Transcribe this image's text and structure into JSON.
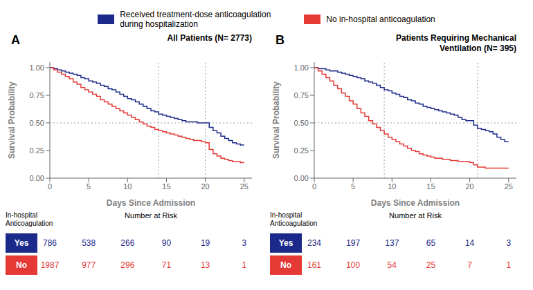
{
  "chart_data": [
    {
      "type": "line",
      "line_style": "step",
      "title": "All Patients (N= 2773)",
      "annotations": [
        "A"
      ],
      "legend": "top",
      "grid": false,
      "x_label": "Days Since Admission",
      "y_label": "Survival Probability",
      "xlim": [
        0,
        26
      ],
      "xticks": [
        0,
        5,
        10,
        15,
        20,
        25
      ],
      "ylim": [
        0,
        1.05
      ],
      "yticks": [
        {
          "value": 0,
          "label": "0.00"
        },
        {
          "value": 0.25,
          "label": "0.25"
        },
        {
          "value": 0.5,
          "label": "0.50"
        },
        {
          "value": 0.75,
          "label": "0.75"
        },
        {
          "value": 1,
          "label": "1.00"
        }
      ],
      "reference_lines": {
        "y": [
          0.5
        ],
        "x": [
          14,
          20
        ]
      },
      "x": [
        0,
        0.5,
        1,
        1.5,
        2,
        2.5,
        3,
        3.5,
        4,
        4.5,
        5,
        5.5,
        6,
        6.5,
        7,
        7.5,
        8,
        8.5,
        9,
        9.5,
        10,
        10.5,
        11,
        11.5,
        12,
        12.5,
        13,
        13.5,
        14,
        14.5,
        15,
        15.5,
        16,
        16.5,
        17,
        17.5,
        18,
        18.5,
        19,
        19.5,
        20,
        20.5,
        21,
        21.5,
        22,
        22.5,
        23,
        23.5,
        24,
        24.5,
        25
      ],
      "series": [
        {
          "name": "Received treatment-dose anticoagulation\nduring hospitalization",
          "color": "#1b2a8a",
          "values": [
            1.0,
            0.99,
            0.98,
            0.97,
            0.96,
            0.95,
            0.94,
            0.93,
            0.91,
            0.9,
            0.88,
            0.87,
            0.86,
            0.84,
            0.83,
            0.81,
            0.8,
            0.78,
            0.76,
            0.74,
            0.72,
            0.71,
            0.69,
            0.67,
            0.65,
            0.63,
            0.61,
            0.6,
            0.58,
            0.57,
            0.56,
            0.55,
            0.54,
            0.53,
            0.52,
            0.51,
            0.51,
            0.51,
            0.5,
            0.5,
            0.5,
            0.46,
            0.43,
            0.41,
            0.38,
            0.36,
            0.34,
            0.32,
            0.31,
            0.3,
            0.3
          ]
        },
        {
          "name": "No in-hospital anticoagulation",
          "color": "#e53935",
          "values": [
            1.0,
            0.98,
            0.96,
            0.94,
            0.92,
            0.9,
            0.87,
            0.85,
            0.82,
            0.8,
            0.78,
            0.76,
            0.74,
            0.71,
            0.69,
            0.67,
            0.65,
            0.63,
            0.61,
            0.59,
            0.57,
            0.55,
            0.53,
            0.51,
            0.49,
            0.47,
            0.46,
            0.44,
            0.43,
            0.42,
            0.41,
            0.4,
            0.39,
            0.38,
            0.37,
            0.36,
            0.35,
            0.34,
            0.34,
            0.33,
            0.32,
            0.26,
            0.22,
            0.2,
            0.18,
            0.17,
            0.16,
            0.15,
            0.15,
            0.14,
            0.14
          ]
        }
      ],
      "risk_table": {
        "title": "Number at Risk",
        "header": "In-hospital\nAnticoagulation",
        "rows": [
          {
            "label": "Yes",
            "color": "#1b2a8a",
            "values": [
              786,
              538,
              266,
              90,
              19,
              3
            ]
          },
          {
            "label": "No",
            "color": "#e53935",
            "values": [
              1987,
              977,
              296,
              71,
              13,
              1
            ]
          }
        ]
      }
    },
    {
      "type": "line",
      "line_style": "step",
      "title": "Patients Requiring Mechanical\nVentilation (N= 395)",
      "annotations": [
        "B"
      ],
      "legend": "top",
      "grid": false,
      "x_label": "Days Since Admission",
      "y_label": "Survival Probability",
      "xlim": [
        0,
        26
      ],
      "xticks": [
        0,
        5,
        10,
        15,
        20,
        25
      ],
      "ylim": [
        0,
        1.05
      ],
      "yticks": [
        {
          "value": 0,
          "label": "0.00"
        },
        {
          "value": 0.25,
          "label": "0.25"
        },
        {
          "value": 0.5,
          "label": "0.50"
        },
        {
          "value": 0.75,
          "label": "0.75"
        },
        {
          "value": 1,
          "label": "1.00"
        }
      ],
      "reference_lines": {
        "y": [
          0.5
        ],
        "x": [
          9,
          21
        ]
      },
      "x": [
        0,
        0.5,
        1,
        1.5,
        2,
        2.5,
        3,
        3.5,
        4,
        4.5,
        5,
        5.5,
        6,
        6.5,
        7,
        7.5,
        8,
        8.5,
        9,
        9.5,
        10,
        10.5,
        11,
        11.5,
        12,
        12.5,
        13,
        13.5,
        14,
        14.5,
        15,
        15.5,
        16,
        16.5,
        17,
        17.5,
        18,
        18.5,
        19,
        19.5,
        20,
        20.5,
        21,
        21.5,
        22,
        22.5,
        23,
        23.5,
        24,
        24.5,
        25
      ],
      "series": [
        {
          "name": "Received treatment-dose anticoagulation\nduring hospitalization",
          "color": "#1b2a8a",
          "values": [
            1.0,
            0.99,
            0.99,
            0.98,
            0.97,
            0.97,
            0.96,
            0.95,
            0.94,
            0.93,
            0.92,
            0.91,
            0.9,
            0.88,
            0.87,
            0.86,
            0.84,
            0.82,
            0.8,
            0.79,
            0.77,
            0.76,
            0.74,
            0.73,
            0.71,
            0.7,
            0.68,
            0.67,
            0.65,
            0.64,
            0.63,
            0.62,
            0.61,
            0.6,
            0.59,
            0.58,
            0.57,
            0.55,
            0.53,
            0.52,
            0.52,
            0.48,
            0.45,
            0.44,
            0.43,
            0.42,
            0.4,
            0.37,
            0.35,
            0.33,
            0.33
          ]
        },
        {
          "name": "No in-hospital anticoagulation",
          "color": "#e53935",
          "values": [
            1.0,
            0.97,
            0.94,
            0.91,
            0.88,
            0.84,
            0.81,
            0.77,
            0.74,
            0.7,
            0.67,
            0.63,
            0.59,
            0.56,
            0.52,
            0.49,
            0.46,
            0.43,
            0.4,
            0.37,
            0.35,
            0.33,
            0.31,
            0.29,
            0.27,
            0.25,
            0.24,
            0.22,
            0.21,
            0.2,
            0.19,
            0.18,
            0.18,
            0.17,
            0.17,
            0.16,
            0.16,
            0.15,
            0.15,
            0.15,
            0.14,
            0.12,
            0.1,
            0.1,
            0.09,
            0.09,
            0.09,
            0.09,
            0.09,
            0.09,
            0.09
          ]
        }
      ],
      "risk_table": {
        "title": "Number at Risk",
        "header": "In-hospital\nAnticoagulation",
        "rows": [
          {
            "label": "Yes",
            "color": "#1b2a8a",
            "values": [
              234,
              197,
              137,
              65,
              14,
              3
            ]
          },
          {
            "label": "No",
            "color": "#e53935",
            "values": [
              161,
              100,
              54,
              25,
              7,
              1
            ]
          }
        ]
      }
    }
  ]
}
